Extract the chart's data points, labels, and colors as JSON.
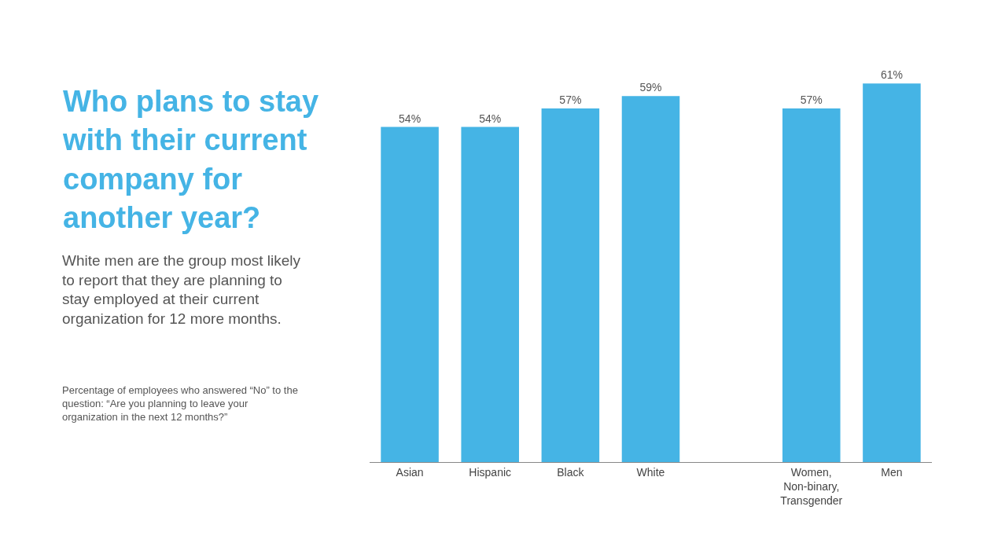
{
  "chart_data": {
    "type": "bar",
    "title": "Who plans to stay with their current company for another year?",
    "subtitle": "White men are the group most likely to report that they are planning to stay employed at their current organization for 12 more months.",
    "annotations": [
      "Percentage of employees who answered “No” to the question: “Are you planning to leave your organization in the next 12 months?”"
    ],
    "categories": [
      "Asian",
      "Hispanic",
      "Black",
      "White",
      null,
      "Women, Non-binary, Transgender",
      "Men"
    ],
    "values": [
      54,
      54,
      57,
      59,
      null,
      57,
      61
    ],
    "value_labels": [
      "54%",
      "54%",
      "57%",
      "59%",
      null,
      "57%",
      "61%"
    ],
    "color": "#45b4e5",
    "tick_labels": "x",
    "legend": false
  }
}
